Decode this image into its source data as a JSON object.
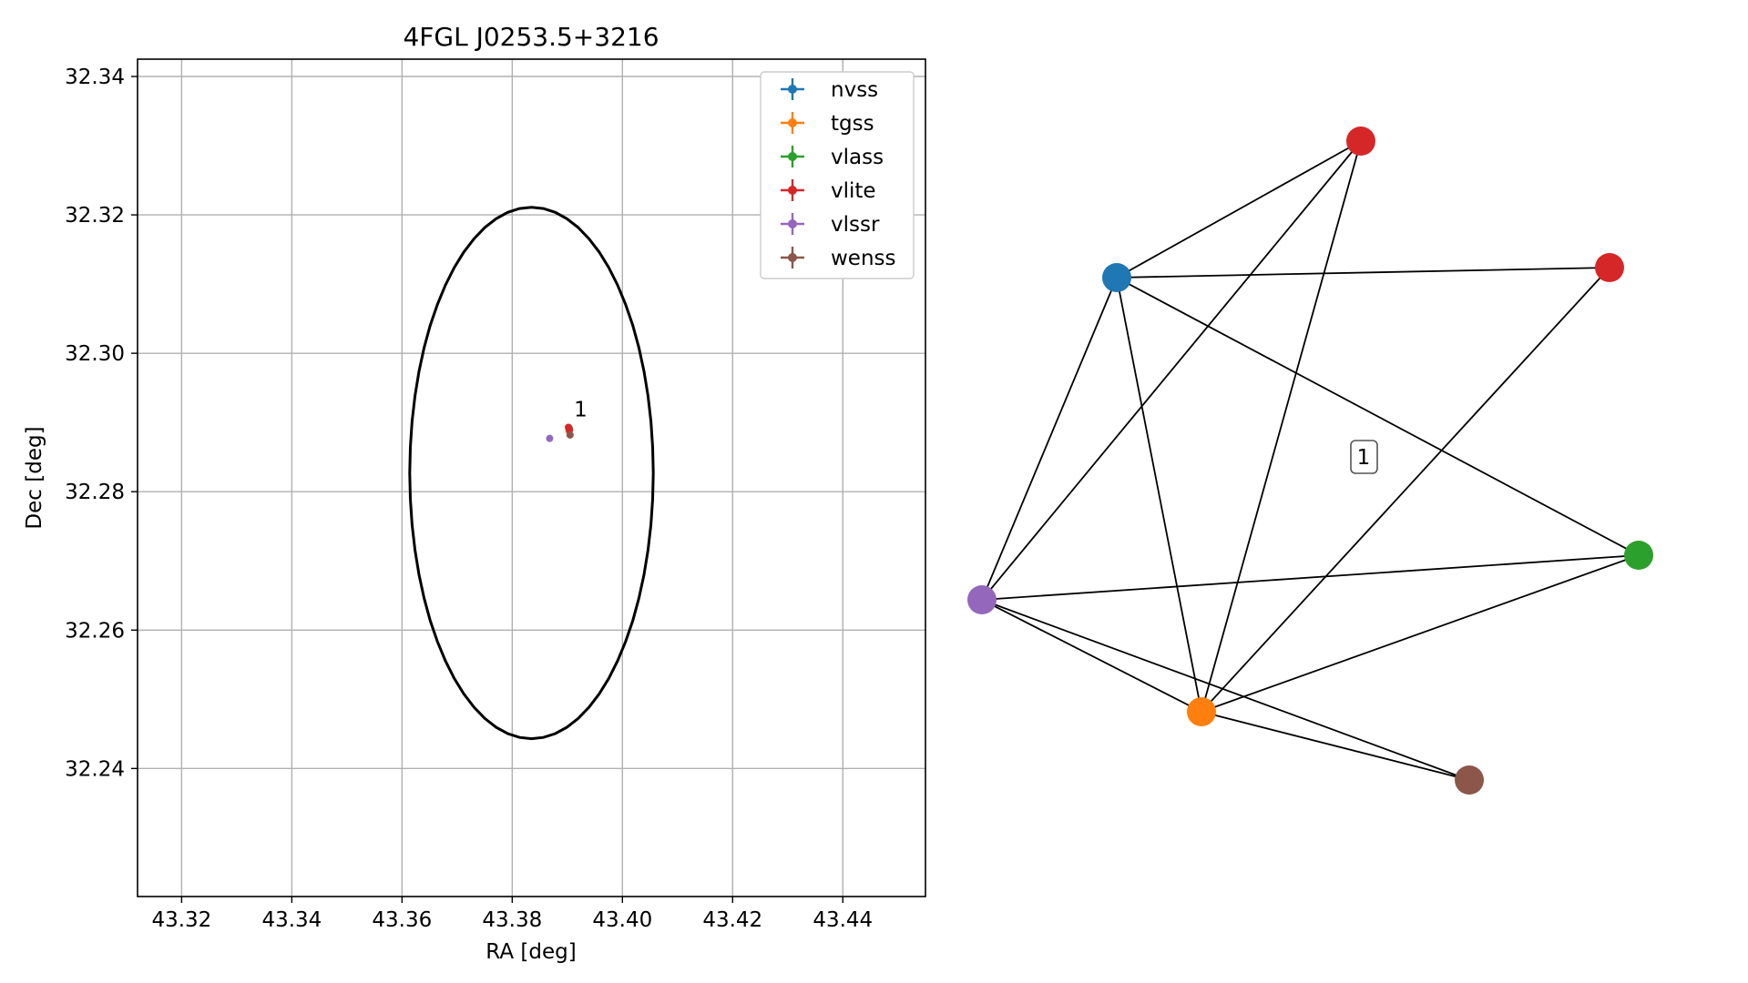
{
  "chart_data": [
    {
      "type": "scatter",
      "title": "4FGL J0253.5+3216",
      "xlabel": "RA [deg]",
      "ylabel": "Dec [deg]",
      "xlim": [
        43.312,
        43.455
      ],
      "ylim": [
        32.2215,
        32.3425
      ],
      "xticks": [
        43.32,
        43.34,
        43.36,
        43.38,
        43.4,
        43.42,
        43.44
      ],
      "xtick_labels": [
        "43.32",
        "43.34",
        "43.36",
        "43.38",
        "43.40",
        "43.42",
        "43.44"
      ],
      "yticks": [
        32.24,
        32.26,
        32.28,
        32.3,
        32.32,
        32.34
      ],
      "ytick_labels": [
        "32.24",
        "32.26",
        "32.28",
        "32.30",
        "32.32",
        "32.34"
      ],
      "grid": true,
      "legend_position": "top-right",
      "ellipse": {
        "center": [
          43.3835,
          32.2827
        ],
        "ra_halfwidth": 0.0221,
        "dec_halfheight": 0.0384,
        "color": "#000000"
      },
      "series": [
        {
          "name": "nvss",
          "color": "#1f77b4",
          "points": [
            [
              43.3903,
              32.2892
            ]
          ]
        },
        {
          "name": "tgss",
          "color": "#ff7f0e",
          "points": [
            [
              43.3903,
              32.2888
            ]
          ]
        },
        {
          "name": "vlass",
          "color": "#2ca02c",
          "points": [
            [
              43.3904,
              32.2891
            ]
          ]
        },
        {
          "name": "vlite",
          "color": "#d62728",
          "points": [
            [
              43.3902,
              32.2893
            ],
            [
              43.3904,
              32.2889
            ]
          ]
        },
        {
          "name": "vlssr",
          "color": "#9467bd",
          "points": [
            [
              43.3868,
              32.2877
            ]
          ]
        },
        {
          "name": "wenss",
          "color": "#8c564b",
          "points": [
            [
              43.3905,
              32.2882
            ]
          ]
        }
      ],
      "annotations": [
        {
          "text": "1",
          "x": 43.3912,
          "y": 32.2902
        }
      ]
    },
    {
      "type": "network",
      "title": "",
      "group_label": "1",
      "nodes": [
        {
          "id": "nvss",
          "color": "#1f77b4"
        },
        {
          "id": "tgss",
          "color": "#ff7f0e"
        },
        {
          "id": "vlass",
          "color": "#2ca02c"
        },
        {
          "id": "vlite1",
          "color": "#d62728"
        },
        {
          "id": "vlite2",
          "color": "#d62728"
        },
        {
          "id": "vlssr",
          "color": "#9467bd"
        },
        {
          "id": "wenss",
          "color": "#8c564b"
        }
      ],
      "edges": [
        [
          "nvss",
          "vlite1"
        ],
        [
          "nvss",
          "vlite2"
        ],
        [
          "nvss",
          "vlass"
        ],
        [
          "nvss",
          "vlssr"
        ],
        [
          "nvss",
          "tgss"
        ],
        [
          "vlite1",
          "vlssr"
        ],
        [
          "vlite1",
          "tgss"
        ],
        [
          "vlite2",
          "tgss"
        ],
        [
          "vlssr",
          "vlass"
        ],
        [
          "vlssr",
          "tgss"
        ],
        [
          "vlssr",
          "wenss"
        ],
        [
          "tgss",
          "vlass"
        ],
        [
          "tgss",
          "wenss"
        ]
      ]
    }
  ]
}
